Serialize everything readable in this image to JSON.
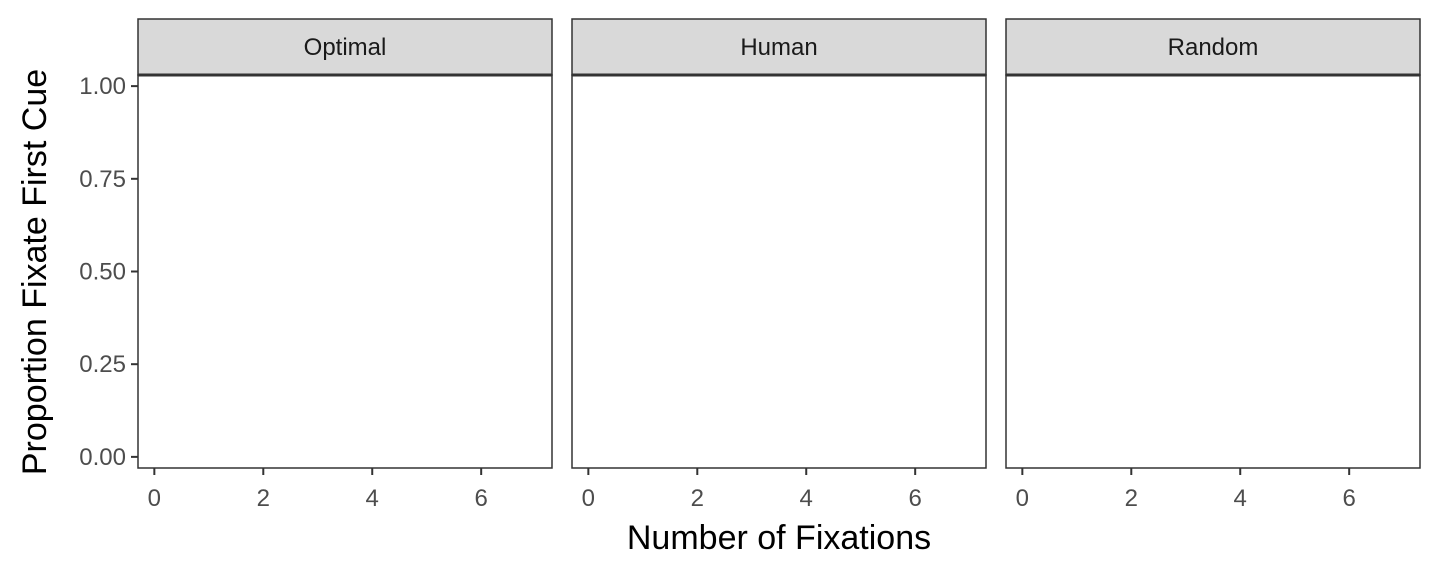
{
  "chart_data": {
    "type": "line",
    "facets": [
      "Optimal",
      "Human",
      "Random"
    ],
    "series": [],
    "xlabel": "Number of Fixations",
    "ylabel": "Proportion Fixate First Cue",
    "xlim": [
      -0.3,
      7.3
    ],
    "ylim": [
      -0.03,
      1.03
    ],
    "xticks": [
      0,
      2,
      4,
      6
    ],
    "xtick_labels": [
      "0",
      "2",
      "4",
      "6"
    ],
    "yticks": [
      0,
      0.25,
      0.5,
      0.75,
      1.0
    ],
    "ytick_labels": [
      "0.00",
      "0.25",
      "0.50",
      "0.75",
      "1.00"
    ],
    "grid": false,
    "legend": "none"
  }
}
